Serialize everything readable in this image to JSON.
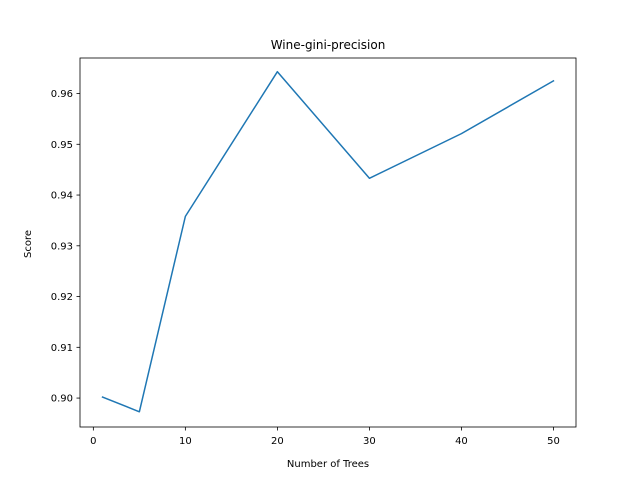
{
  "chart_data": {
    "type": "line",
    "title": "Wine-gini-precision",
    "xlabel": "Number of Trees",
    "ylabel": "Score",
    "xlim": [
      -1.45,
      52.45
    ],
    "ylim": [
      0.8943,
      0.967
    ],
    "xticks": [
      0,
      10,
      20,
      30,
      40,
      50
    ],
    "yticks": [
      0.9,
      0.91,
      0.92,
      0.93,
      0.94,
      0.95,
      0.96
    ],
    "xtick_labels": [
      "0",
      "10",
      "20",
      "30",
      "40",
      "50"
    ],
    "ytick_labels": [
      "0.90",
      "0.91",
      "0.92",
      "0.93",
      "0.94",
      "0.95",
      "0.96"
    ],
    "grid": false,
    "legend": "none",
    "series": [
      {
        "color": "#1f77b4",
        "x": [
          1,
          5,
          10,
          20,
          30,
          40,
          50
        ],
        "y": [
          0.9002,
          0.8973,
          0.9358,
          0.9643,
          0.9433,
          0.9521,
          0.9625
        ]
      }
    ]
  }
}
